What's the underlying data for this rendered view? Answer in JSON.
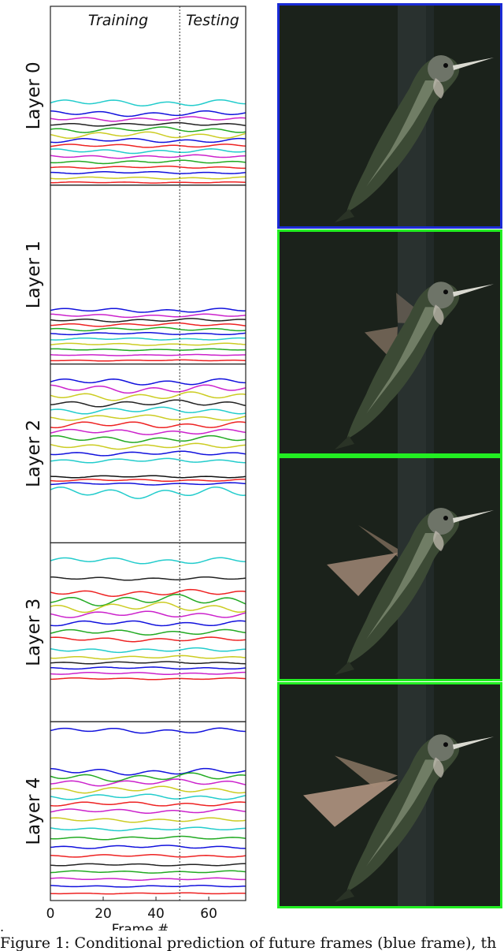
{
  "figure": {
    "caption_visible": "Figure 1: Conditional prediction of future frames (blue frame), th",
    "leading_mark": "."
  },
  "chart_data": {
    "type": "line",
    "header_left": "Training",
    "header_right": "Testing",
    "xlabel": "Frame #",
    "xticks": [
      0,
      20,
      40,
      60
    ],
    "xlim": [
      0,
      74
    ],
    "split_frame": 49,
    "panels": [
      {
        "label": "Layer 0",
        "bands": [
          {
            "level": 0.46,
            "color": "#22cccc",
            "amp": 0.012
          },
          {
            "level": 0.4,
            "color": "#1111dd",
            "amp": 0.01
          },
          {
            "level": 0.37,
            "color": "#cc22cc",
            "amp": 0.008
          },
          {
            "level": 0.34,
            "color": "#222222",
            "amp": 0.006
          },
          {
            "level": 0.31,
            "color": "#22aa22",
            "amp": 0.01
          },
          {
            "level": 0.28,
            "color": "#cccc22",
            "amp": 0.012
          },
          {
            "level": 0.25,
            "color": "#1111dd",
            "amp": 0.008
          },
          {
            "level": 0.22,
            "color": "#ee2222",
            "amp": 0.006
          },
          {
            "level": 0.19,
            "color": "#22cccc",
            "amp": 0.008
          },
          {
            "level": 0.16,
            "color": "#cc22cc",
            "amp": 0.006
          },
          {
            "level": 0.13,
            "color": "#22aa22",
            "amp": 0.006
          },
          {
            "level": 0.1,
            "color": "#ee2222",
            "amp": 0.004
          },
          {
            "level": 0.07,
            "color": "#1111dd",
            "amp": 0.004
          },
          {
            "level": 0.04,
            "color": "#cccc22",
            "amp": 0.004
          },
          {
            "level": 0.015,
            "color": "#ee2222",
            "amp": 0.002
          }
        ]
      },
      {
        "label": "Layer 1",
        "bands": [
          {
            "level": 0.3,
            "color": "#1111dd",
            "amp": 0.008
          },
          {
            "level": 0.27,
            "color": "#cc22cc",
            "amp": 0.006
          },
          {
            "level": 0.245,
            "color": "#222222",
            "amp": 0.006
          },
          {
            "level": 0.22,
            "color": "#ee2222",
            "amp": 0.006
          },
          {
            "level": 0.195,
            "color": "#22aa22",
            "amp": 0.006
          },
          {
            "level": 0.17,
            "color": "#1111dd",
            "amp": 0.004
          },
          {
            "level": 0.14,
            "color": "#22cccc",
            "amp": 0.004
          },
          {
            "level": 0.11,
            "color": "#cccc22",
            "amp": 0.004
          },
          {
            "level": 0.08,
            "color": "#22aa22",
            "amp": 0.003
          },
          {
            "level": 0.05,
            "color": "#cc22cc",
            "amp": 0.002
          },
          {
            "level": 0.02,
            "color": "#ee2222",
            "amp": 0.002
          }
        ]
      },
      {
        "label": "Layer 2",
        "bands": [
          {
            "level": 0.9,
            "color": "#1111dd",
            "amp": 0.012
          },
          {
            "level": 0.86,
            "color": "#cc22cc",
            "amp": 0.015
          },
          {
            "level": 0.82,
            "color": "#cccc22",
            "amp": 0.015
          },
          {
            "level": 0.78,
            "color": "#222222",
            "amp": 0.012
          },
          {
            "level": 0.74,
            "color": "#22cccc",
            "amp": 0.012
          },
          {
            "level": 0.7,
            "color": "#cccc22",
            "amp": 0.01
          },
          {
            "level": 0.66,
            "color": "#ee2222",
            "amp": 0.012
          },
          {
            "level": 0.62,
            "color": "#cc22cc",
            "amp": 0.01
          },
          {
            "level": 0.58,
            "color": "#22aa22",
            "amp": 0.012
          },
          {
            "level": 0.54,
            "color": "#cccc22",
            "amp": 0.01
          },
          {
            "level": 0.5,
            "color": "#1111dd",
            "amp": 0.008
          },
          {
            "level": 0.46,
            "color": "#22cccc",
            "amp": 0.008
          },
          {
            "level": 0.37,
            "color": "#111111",
            "amp": 0.004
          },
          {
            "level": 0.35,
            "color": "#ee2222",
            "amp": 0.004
          },
          {
            "level": 0.33,
            "color": "#1111dd",
            "amp": 0.004
          },
          {
            "level": 0.28,
            "color": "#22cccc",
            "amp": 0.02
          }
        ]
      },
      {
        "label": "Layer 3",
        "bands": [
          {
            "level": 0.9,
            "color": "#22cccc",
            "amp": 0.012
          },
          {
            "level": 0.8,
            "color": "#222222",
            "amp": 0.006
          },
          {
            "level": 0.72,
            "color": "#ee2222",
            "amp": 0.012
          },
          {
            "level": 0.68,
            "color": "#22aa22",
            "amp": 0.02
          },
          {
            "level": 0.64,
            "color": "#cccc22",
            "amp": 0.018
          },
          {
            "level": 0.6,
            "color": "#cc22cc",
            "amp": 0.012
          },
          {
            "level": 0.55,
            "color": "#1111dd",
            "amp": 0.01
          },
          {
            "level": 0.5,
            "color": "#22aa22",
            "amp": 0.01
          },
          {
            "level": 0.46,
            "color": "#ee2222",
            "amp": 0.008
          },
          {
            "level": 0.4,
            "color": "#22cccc",
            "amp": 0.008
          },
          {
            "level": 0.36,
            "color": "#cccc22",
            "amp": 0.006
          },
          {
            "level": 0.33,
            "color": "#222222",
            "amp": 0.004
          },
          {
            "level": 0.3,
            "color": "#1111dd",
            "amp": 0.004
          },
          {
            "level": 0.27,
            "color": "#cc22cc",
            "amp": 0.004
          },
          {
            "level": 0.24,
            "color": "#ee2222",
            "amp": 0.003
          }
        ]
      },
      {
        "label": "Layer 4",
        "bands": [
          {
            "level": 0.95,
            "color": "#1111dd",
            "amp": 0.01
          },
          {
            "level": 0.72,
            "color": "#1111dd",
            "amp": 0.012
          },
          {
            "level": 0.69,
            "color": "#22aa22",
            "amp": 0.015
          },
          {
            "level": 0.66,
            "color": "#cc22cc",
            "amp": 0.012
          },
          {
            "level": 0.62,
            "color": "#cccc22",
            "amp": 0.012
          },
          {
            "level": 0.58,
            "color": "#22cccc",
            "amp": 0.01
          },
          {
            "level": 0.54,
            "color": "#ee2222",
            "amp": 0.008
          },
          {
            "level": 0.5,
            "color": "#cc22cc",
            "amp": 0.008
          },
          {
            "level": 0.45,
            "color": "#cccc22",
            "amp": 0.008
          },
          {
            "level": 0.4,
            "color": "#22cccc",
            "amp": 0.006
          },
          {
            "level": 0.35,
            "color": "#22aa22",
            "amp": 0.006
          },
          {
            "level": 0.3,
            "color": "#1111dd",
            "amp": 0.006
          },
          {
            "level": 0.25,
            "color": "#ee2222",
            "amp": 0.005
          },
          {
            "level": 0.2,
            "color": "#222222",
            "amp": 0.004
          },
          {
            "level": 0.16,
            "color": "#22aa22",
            "amp": 0.004
          },
          {
            "level": 0.12,
            "color": "#cc22cc",
            "amp": 0.004
          },
          {
            "level": 0.08,
            "color": "#1111dd",
            "amp": 0.003
          },
          {
            "level": 0.04,
            "color": "#ee2222",
            "amp": 0.002
          }
        ]
      }
    ]
  },
  "frames": [
    {
      "kind": "input",
      "border_color": "#1a2bd6",
      "wing_spread": 0.0
    },
    {
      "kind": "predicted",
      "border_color": "#22ee22",
      "wing_spread": 0.35
    },
    {
      "kind": "predicted",
      "border_color": "#22ee22",
      "wing_spread": 0.75
    },
    {
      "kind": "predicted",
      "border_color": "#22ee22",
      "wing_spread": 1.0
    }
  ]
}
